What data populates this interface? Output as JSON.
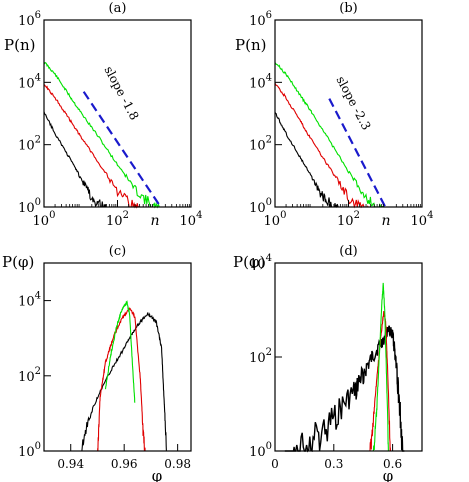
{
  "chart_data": [
    {
      "panel": "(a)",
      "type": "line",
      "xlabel": "n",
      "ylabel": "P(n)",
      "xscale": "log",
      "yscale": "log",
      "xlim": [
        1,
        10000
      ],
      "ylim": [
        1,
        1000000
      ],
      "xticks": [
        {
          "base": "10",
          "exp": "0",
          "v": 1
        },
        {
          "base": "10",
          "exp": "2",
          "v": 100
        },
        {
          "base": "10",
          "exp": "4",
          "v": 10000
        }
      ],
      "yticks": [
        {
          "base": "10",
          "exp": "0",
          "v": 1
        },
        {
          "base": "10",
          "exp": "2",
          "v": 100
        },
        {
          "base": "10",
          "exp": "4",
          "v": 10000
        },
        {
          "base": "10",
          "exp": "6",
          "v": 1000000
        }
      ],
      "annotation": "slope  -1.8",
      "series": [
        {
          "color": "#00e000",
          "x": [
            1,
            2,
            5,
            10,
            30,
            100,
            300,
            1000,
            2000
          ],
          "y": [
            50000,
            20000,
            4000,
            1200,
            200,
            25,
            5,
            1.5,
            1
          ]
        },
        {
          "color": "#e00000",
          "x": [
            1,
            2,
            5,
            10,
            30,
            100,
            300,
            700
          ],
          "y": [
            10000,
            3500,
            700,
            200,
            30,
            4,
            1.5,
            1
          ]
        },
        {
          "color": "#000000",
          "x": [
            1,
            2,
            5,
            10,
            20,
            40,
            60
          ],
          "y": [
            1200,
            250,
            40,
            10,
            3,
            1.5,
            1
          ]
        },
        {
          "color": "#1a1acc",
          "dashed": true,
          "x": [
            12,
            1500
          ],
          "y": [
            5000,
            0.9
          ]
        }
      ]
    },
    {
      "panel": "(b)",
      "type": "line",
      "xlabel": "n",
      "ylabel": "P(n)",
      "xscale": "log",
      "yscale": "log",
      "xlim": [
        1,
        10000
      ],
      "ylim": [
        1,
        1000000
      ],
      "xticks": [
        {
          "base": "10",
          "exp": "0",
          "v": 1
        },
        {
          "base": "10",
          "exp": "2",
          "v": 100
        },
        {
          "base": "10",
          "exp": "4",
          "v": 10000
        }
      ],
      "yticks": [
        {
          "base": "10",
          "exp": "0",
          "v": 1
        },
        {
          "base": "10",
          "exp": "2",
          "v": 100
        },
        {
          "base": "10",
          "exp": "4",
          "v": 10000
        },
        {
          "base": "10",
          "exp": "6",
          "v": 1000000
        }
      ],
      "annotation": "slope  -2.3",
      "series": [
        {
          "color": "#00e000",
          "x": [
            1,
            2,
            5,
            10,
            30,
            100,
            300,
            800,
            1000
          ],
          "y": [
            50000,
            20000,
            4000,
            1200,
            150,
            15,
            3,
            1.2,
            1
          ]
        },
        {
          "color": "#e00000",
          "x": [
            1,
            2,
            5,
            10,
            30,
            100,
            300,
            400
          ],
          "y": [
            10000,
            3500,
            600,
            150,
            20,
            3,
            1.2,
            1
          ]
        },
        {
          "color": "#000000",
          "x": [
            1,
            2,
            5,
            10,
            20,
            40,
            60
          ],
          "y": [
            1200,
            250,
            40,
            10,
            3,
            1.5,
            1
          ]
        },
        {
          "color": "#1a1acc",
          "dashed": true,
          "x": [
            30,
            1000
          ],
          "y": [
            3000,
            1
          ]
        }
      ]
    },
    {
      "panel": "(c)",
      "type": "line",
      "xlabel": "φ",
      "ylabel": "P(φ)",
      "xscale": "linear",
      "yscale": "log",
      "xlim": [
        0.93,
        0.985
      ],
      "ylim": [
        1,
        100000
      ],
      "xticks": [
        {
          "label": "0.94",
          "v": 0.94
        },
        {
          "label": "0.96",
          "v": 0.96
        },
        {
          "label": "0.98",
          "v": 0.98
        }
      ],
      "yticks": [
        {
          "base": "10",
          "exp": "0",
          "v": 1
        },
        {
          "base": "10",
          "exp": "2",
          "v": 100
        },
        {
          "base": "10",
          "exp": "4",
          "v": 10000
        }
      ],
      "series": [
        {
          "color": "#000000",
          "x": [
            0.943,
            0.946,
            0.95,
            0.955,
            0.96,
            0.963,
            0.966,
            0.969,
            0.972,
            0.974,
            0.975,
            0.976
          ],
          "y": [
            1,
            6,
            30,
            150,
            600,
            1500,
            3000,
            5000,
            3000,
            600,
            20,
            1
          ]
        },
        {
          "color": "#e00000",
          "x": [
            0.95,
            0.951,
            0.953,
            0.956,
            0.959,
            0.962,
            0.964,
            0.966,
            0.967,
            0.968
          ],
          "y": [
            1,
            30,
            250,
            1200,
            3500,
            7000,
            4000,
            100,
            5,
            1
          ]
        },
        {
          "color": "#00e000",
          "x": [
            0.953,
            0.955,
            0.957,
            0.959,
            0.961,
            0.962,
            0.963,
            0.964
          ],
          "y": [
            50,
            400,
            2000,
            6000,
            10000,
            5000,
            300,
            20
          ]
        }
      ]
    },
    {
      "panel": "(d)",
      "type": "line",
      "xlabel": "φ",
      "ylabel": "P(φ)",
      "xscale": "linear",
      "yscale": "log",
      "xlim": [
        0,
        0.75
      ],
      "ylim": [
        1,
        10000
      ],
      "xticks": [
        {
          "label": "0",
          "v": 0
        },
        {
          "label": "0.3",
          "v": 0.3
        },
        {
          "label": "0.6",
          "v": 0.6
        }
      ],
      "yticks": [
        {
          "base": "10",
          "exp": "0",
          "v": 1
        },
        {
          "base": "10",
          "exp": "2",
          "v": 100
        },
        {
          "base": "10",
          "exp": "4",
          "v": 10000
        }
      ],
      "series": [
        {
          "color": "#000000",
          "noisy": true,
          "x": [
            0.05,
            0.1,
            0.2,
            0.3,
            0.4,
            0.45,
            0.5,
            0.55,
            0.58,
            0.6,
            0.62,
            0.64,
            0.66
          ],
          "y": [
            1,
            2,
            4,
            10,
            30,
            70,
            150,
            300,
            500,
            400,
            100,
            10,
            1
          ]
        },
        {
          "color": "#e00000",
          "x": [
            0.48,
            0.5,
            0.52,
            0.54,
            0.555,
            0.565,
            0.575,
            0.59
          ],
          "y": [
            1,
            5,
            40,
            300,
            1000,
            600,
            50,
            1
          ]
        },
        {
          "color": "#00e000",
          "x": [
            0.5,
            0.52,
            0.535,
            0.545,
            0.552,
            0.56,
            0.57,
            0.58
          ],
          "y": [
            1,
            10,
            200,
            1500,
            4000,
            1000,
            30,
            1
          ]
        }
      ]
    }
  ]
}
